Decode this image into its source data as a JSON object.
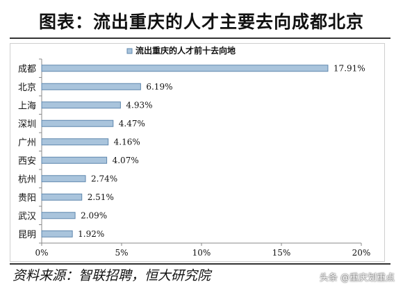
{
  "title": "图表：流出重庆的人才主要去向成都北京",
  "source": "资料来源：智联招聘，恒大研究院",
  "watermark": "头条 @重庆划重点",
  "colors": {
    "bar_fill": "#a9c4dc",
    "bar_stroke": "#5f87ae",
    "axis": "#888888"
  },
  "chart_data": {
    "type": "bar",
    "orientation": "horizontal",
    "categories": [
      "成都",
      "北京",
      "上海",
      "深圳",
      "广州",
      "西安",
      "杭州",
      "贵阳",
      "武汉",
      "昆明"
    ],
    "series": [
      {
        "name": "流出重庆的人才前十去向地",
        "values": [
          17.91,
          6.19,
          4.93,
          4.47,
          4.16,
          4.07,
          2.74,
          2.51,
          2.09,
          1.92
        ],
        "labels": [
          "17.91%",
          "6.19%",
          "4.93%",
          "4.47%",
          "4.16%",
          "4.07%",
          "2.74%",
          "2.51%",
          "2.09%",
          "1.92%"
        ]
      }
    ],
    "xlim": [
      0,
      20
    ],
    "xticks": [
      0,
      5,
      10,
      15,
      20
    ],
    "xtick_labels": [
      "0%",
      "5%",
      "10%",
      "15%",
      "20%"
    ],
    "legend_position": "top-center",
    "grid": false
  }
}
